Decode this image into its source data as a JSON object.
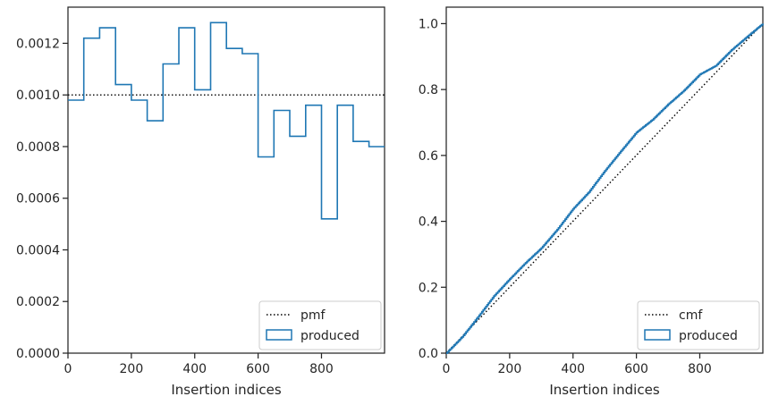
{
  "chart_data": [
    {
      "type": "histogram",
      "xlabel": "Insertion indices",
      "ylabel": "",
      "xlim": [
        0,
        999
      ],
      "ylim": [
        0,
        0.00134
      ],
      "xticks": [
        0,
        200,
        400,
        600,
        800
      ],
      "xtick_labels": [
        "0",
        "200",
        "400",
        "600",
        "800"
      ],
      "yticks": [
        0,
        0.0002,
        0.0004,
        0.0006,
        0.0008,
        0.001,
        0.0012
      ],
      "ytick_labels": [
        "0.0000",
        "0.0002",
        "0.0004",
        "0.0006",
        "0.0008",
        "0.0010",
        "0.0012"
      ],
      "legend_position": "lower-right",
      "series": [
        {
          "name": "pmf",
          "style": "dotted",
          "color": "#000000",
          "x": [
            0,
            999
          ],
          "y": [
            0.001,
            0.001
          ]
        },
        {
          "name": "produced",
          "style": "step",
          "color": "#1f77b4",
          "bin_edges": [
            0,
            50,
            100,
            150,
            200,
            250,
            300,
            350,
            400,
            450,
            500,
            550,
            600,
            650,
            700,
            750,
            800,
            850,
            900,
            950,
            999
          ],
          "values": [
            0.00098,
            0.00122,
            0.00126,
            0.00104,
            0.00098,
            0.0009,
            0.00112,
            0.00126,
            0.00102,
            0.00128,
            0.00118,
            0.00116,
            0.00076,
            0.00094,
            0.00084,
            0.00096,
            0.00052,
            0.00096,
            0.00082,
            0.0008
          ]
        }
      ]
    },
    {
      "type": "line",
      "xlabel": "Insertion indices",
      "ylabel": "",
      "xlim": [
        0,
        999
      ],
      "ylim": [
        0,
        1.05
      ],
      "xticks": [
        0,
        200,
        400,
        600,
        800
      ],
      "xtick_labels": [
        "0",
        "200",
        "400",
        "600",
        "800"
      ],
      "yticks": [
        0,
        0.2,
        0.4,
        0.6,
        0.8,
        1.0
      ],
      "ytick_labels": [
        "0.0",
        "0.2",
        "0.4",
        "0.6",
        "0.8",
        "1.0"
      ],
      "legend_position": "lower-right",
      "series": [
        {
          "name": "cmf",
          "style": "dotted",
          "color": "#000000",
          "x": [
            0,
            999
          ],
          "y": [
            0,
            1.0
          ]
        },
        {
          "name": "produced",
          "style": "step",
          "color": "#1f77b4",
          "x": [
            0,
            50,
            100,
            150,
            200,
            250,
            300,
            350,
            400,
            450,
            500,
            550,
            600,
            650,
            700,
            750,
            800,
            850,
            900,
            950,
            999
          ],
          "y": [
            0.0,
            0.049,
            0.11,
            0.173,
            0.225,
            0.274,
            0.319,
            0.375,
            0.438,
            0.489,
            0.553,
            0.612,
            0.67,
            0.708,
            0.755,
            0.797,
            0.846,
            0.872,
            0.92,
            0.961,
            1.0
          ]
        }
      ]
    }
  ]
}
